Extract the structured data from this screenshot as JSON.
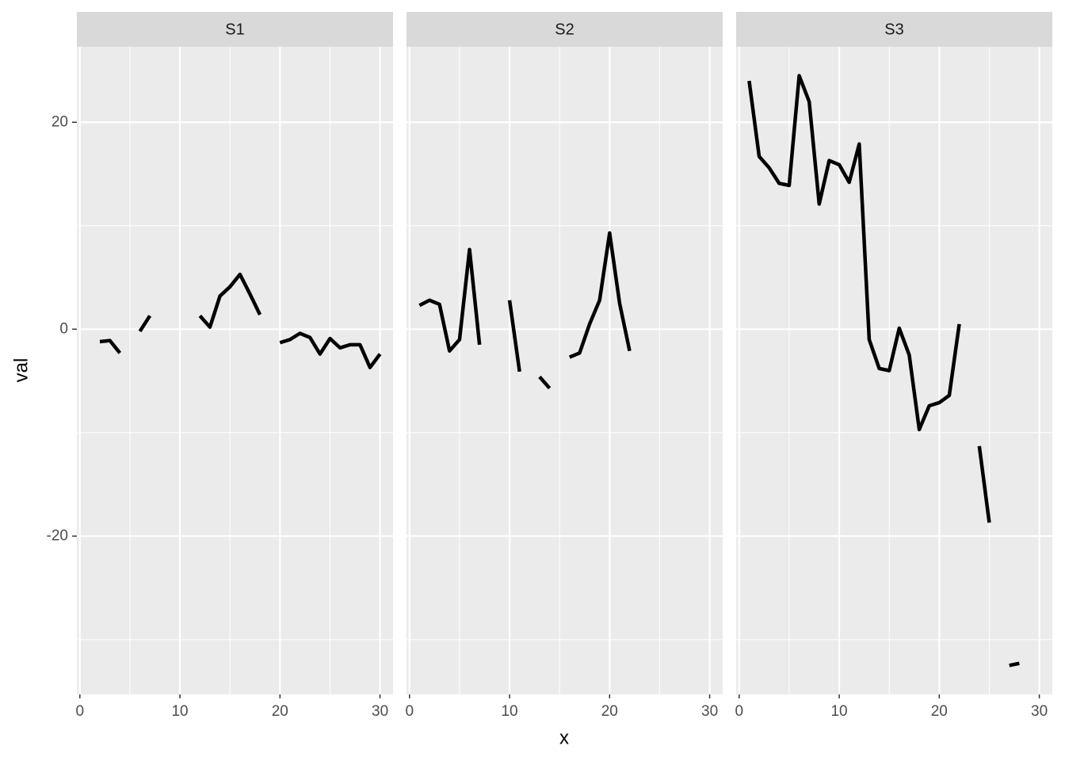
{
  "chart_data": {
    "type": "line",
    "x": [
      1,
      2,
      3,
      4,
      5,
      6,
      7,
      8,
      9,
      10,
      11,
      12,
      13,
      14,
      15,
      16,
      17,
      18,
      19,
      20,
      21,
      22,
      23,
      24,
      25,
      26,
      27,
      28,
      29,
      30
    ],
    "series": [
      {
        "name": "S1",
        "color": "#000000",
        "values": [
          null,
          -1.2,
          -1.1,
          -2.3,
          null,
          -0.2,
          1.3,
          null,
          null,
          null,
          null,
          1.3,
          0.2,
          3.2,
          4.1,
          5.3,
          3.4,
          1.4,
          null,
          -1.3,
          -1.0,
          -0.4,
          -0.8,
          -2.4,
          -0.9,
          -1.8,
          -1.5,
          -1.5,
          -3.7,
          -2.4
        ]
      },
      {
        "name": "S2",
        "color": "#000000",
        "values": [
          2.3,
          2.8,
          2.4,
          -2.1,
          -1.0,
          7.7,
          -1.5,
          null,
          null,
          2.8,
          -4.1,
          null,
          -4.6,
          -5.7,
          null,
          -2.7,
          -2.3,
          0.5,
          2.8,
          9.3,
          2.5,
          -2.1,
          null,
          null,
          null,
          null,
          null,
          null,
          null,
          null
        ]
      },
      {
        "name": "S3",
        "color": "#000000",
        "values": [
          24.0,
          16.7,
          15.6,
          14.1,
          13.9,
          24.5,
          22.0,
          12.1,
          16.3,
          15.9,
          14.2,
          17.9,
          -1.0,
          -3.8,
          -4.0,
          0.1,
          -2.5,
          -9.7,
          -7.4,
          -7.1,
          -6.4,
          0.5,
          null,
          -11.3,
          -18.7,
          null,
          -32.5,
          -32.3,
          null,
          null
        ]
      }
    ],
    "xlabel": "x",
    "ylabel": "val",
    "xlim": [
      -0.3,
      31.3
    ],
    "ylim": [
      -35.3,
      27.3
    ],
    "xticks": [
      0,
      10,
      20,
      30
    ],
    "yticks": [
      -20,
      0,
      20
    ],
    "x_minor_ticks": [
      5,
      15,
      25
    ],
    "y_minor_ticks": [
      -30,
      -10,
      10
    ],
    "grid": true
  }
}
